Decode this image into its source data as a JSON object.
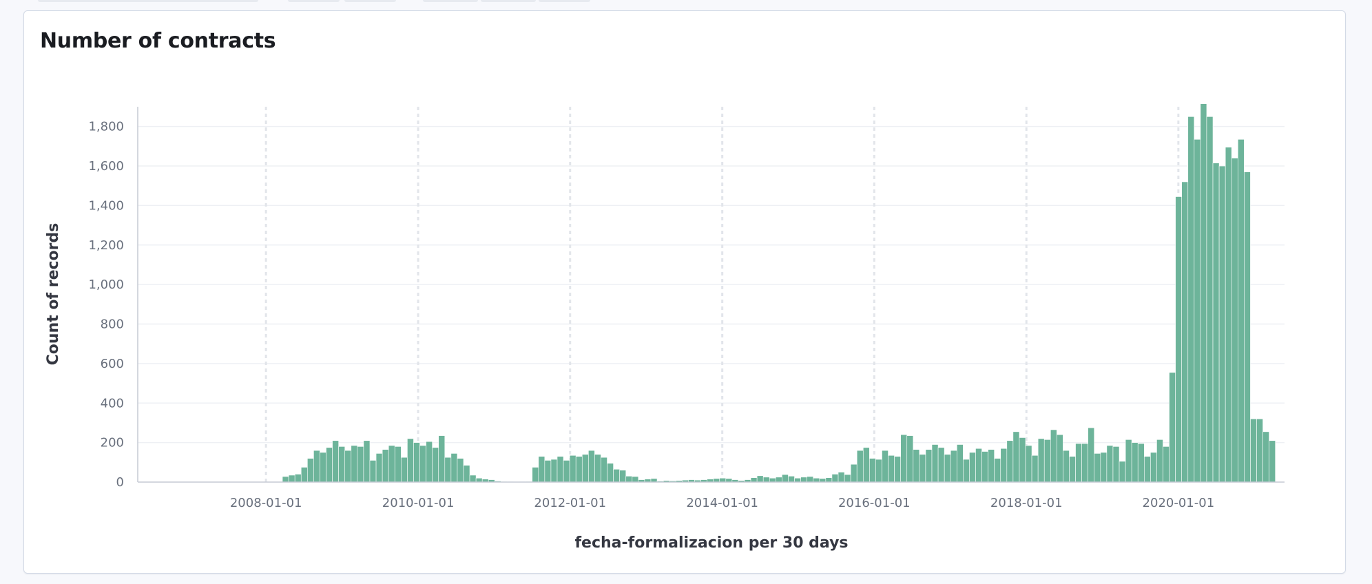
{
  "panel": {
    "title": "Number of contracts"
  },
  "colors": {
    "bar": "#6db49a",
    "bar_stroke": "#ffffff",
    "grid": "#eef0f4",
    "vgrid": "#e2e5ea",
    "axis": "#c5cad4"
  },
  "chart_data": {
    "type": "bar",
    "title": "Number of contracts",
    "xlabel": "fecha-formalizacion per 30 days",
    "ylabel": "Count of records",
    "ylim": [
      0,
      1900
    ],
    "y_ticks": [
      0,
      200,
      400,
      600,
      800,
      1000,
      1200,
      1400,
      1600,
      1800
    ],
    "y_tick_labels": [
      "0",
      "200",
      "400",
      "600",
      "800",
      "1,000",
      "1,200",
      "1,400",
      "1,600",
      "1,800"
    ],
    "x_tick_labels": [
      "2008-01-01",
      "2010-01-01",
      "2012-01-01",
      "2014-01-01",
      "2016-01-01",
      "2018-01-01",
      "2020-01-01"
    ],
    "x_range": [
      "2006-04-25",
      "2021-05-25"
    ],
    "bar_interval_days": 30,
    "first_bar_start": "2008-03-20",
    "grid": true,
    "values": [
      28,
      35,
      40,
      75,
      120,
      160,
      150,
      175,
      210,
      180,
      160,
      185,
      180,
      210,
      110,
      145,
      165,
      185,
      180,
      125,
      220,
      200,
      185,
      205,
      175,
      235,
      125,
      145,
      120,
      85,
      35,
      20,
      15,
      12,
      5,
      3,
      2,
      1,
      2,
      3,
      75,
      130,
      110,
      115,
      130,
      110,
      135,
      130,
      140,
      160,
      140,
      125,
      95,
      65,
      60,
      30,
      28,
      12,
      15,
      18,
      5,
      8,
      6,
      8,
      10,
      12,
      10,
      12,
      15,
      18,
      20,
      18,
      12,
      8,
      12,
      22,
      32,
      25,
      20,
      25,
      38,
      30,
      20,
      25,
      28,
      20,
      18,
      22,
      40,
      50,
      38,
      90,
      160,
      175,
      120,
      115,
      160,
      135,
      130,
      240,
      235,
      165,
      140,
      165,
      190,
      175,
      140,
      160,
      190,
      115,
      150,
      170,
      155,
      165,
      120,
      170,
      210,
      255,
      225,
      185,
      135,
      220,
      215,
      265,
      240,
      160,
      130,
      195,
      195,
      275,
      145,
      150,
      185,
      180,
      105,
      215,
      200,
      195,
      130,
      150,
      215,
      180,
      555,
      1445,
      1520,
      1850,
      1735,
      1915,
      1850,
      1615,
      1600,
      1695,
      1640,
      1735,
      1570,
      320,
      320,
      255,
      210
    ]
  }
}
